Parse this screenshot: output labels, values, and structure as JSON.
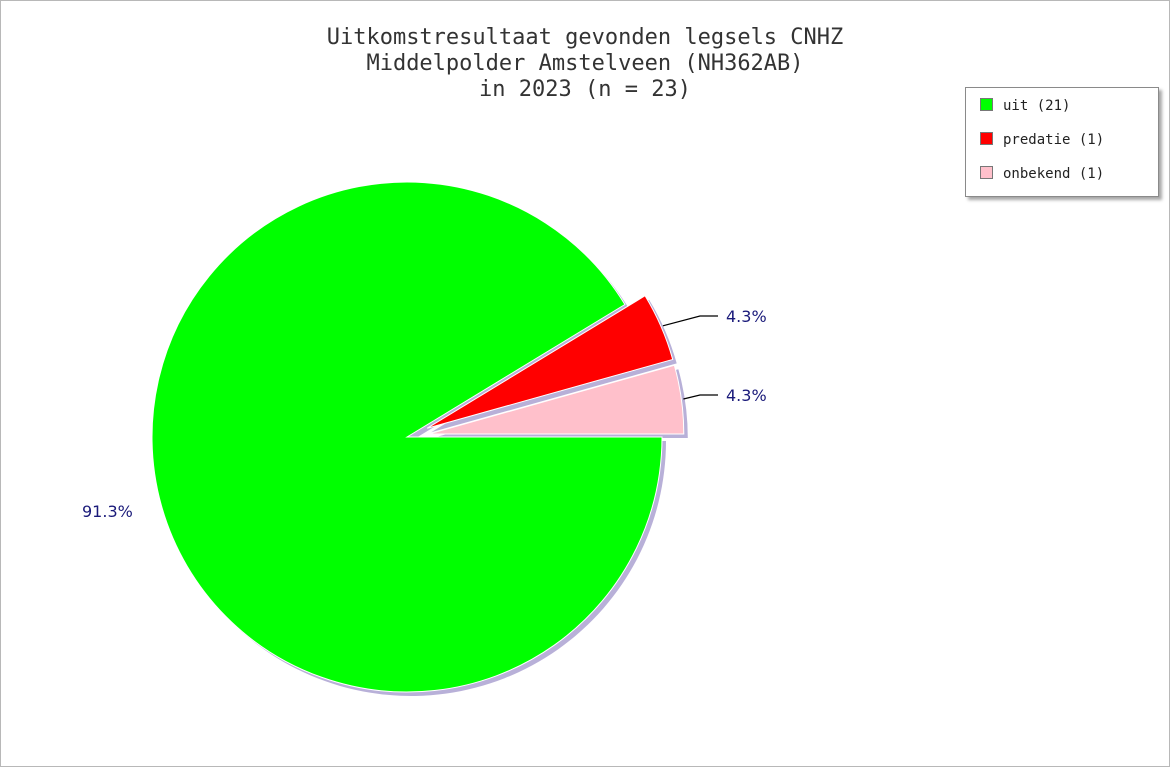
{
  "chart_data": {
    "type": "pie",
    "title_lines": [
      "Uitkomstresultaat gevonden legsels CNHZ",
      "Middelpolder Amstelveen (NH362AB)",
      "in 2023 (n = 23)"
    ],
    "slices": [
      {
        "label": "uit",
        "legend": "uit (21)",
        "value": 21,
        "percent_label": "91.3%",
        "color": "#00ff00",
        "exploded": false
      },
      {
        "label": "predatie",
        "legend": "predatie (1)",
        "value": 1,
        "percent_label": "4.3%",
        "color": "#ff0000",
        "exploded": true
      },
      {
        "label": "onbekend",
        "legend": "onbekend (1)",
        "value": 1,
        "percent_label": "4.3%",
        "color": "#ffc0cb",
        "exploded": true
      }
    ],
    "legend_placement": "top-right"
  }
}
